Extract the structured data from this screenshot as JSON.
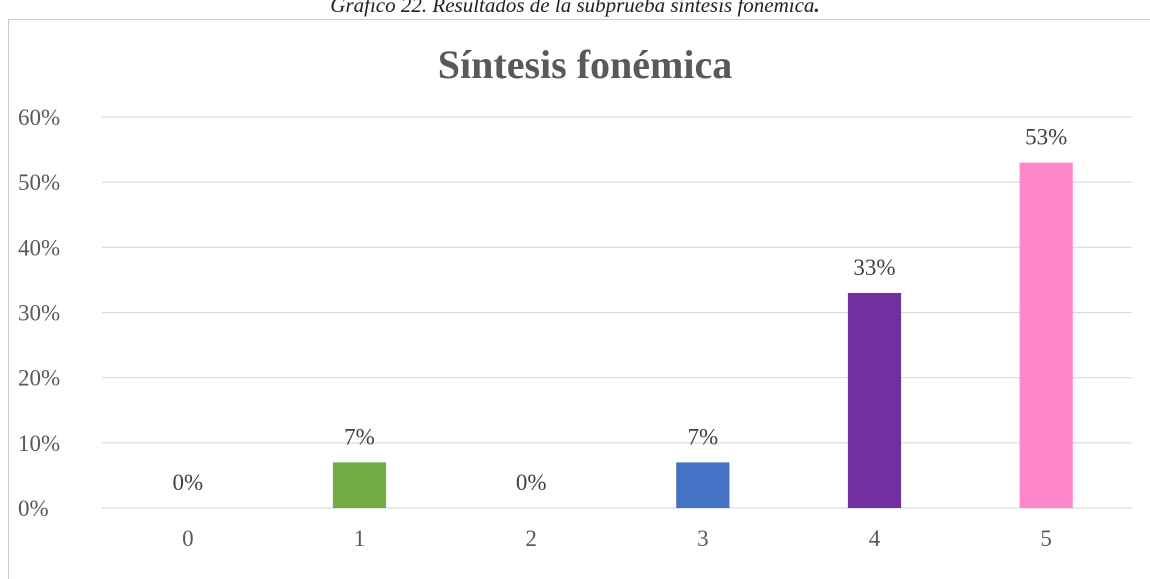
{
  "caption": {
    "text": "Gráfico 22. Resultados de la subprueba síntesis fonémica",
    "trailing": "."
  },
  "chart_data": {
    "type": "bar",
    "title": "Síntesis fonémica",
    "xlabel": "",
    "ylabel": "",
    "categories": [
      "0",
      "1",
      "2",
      "3",
      "4",
      "5"
    ],
    "values": [
      0,
      7,
      0,
      7,
      33,
      53
    ],
    "value_labels": [
      "0%",
      "7%",
      "0%",
      "7%",
      "33%",
      "53%"
    ],
    "bar_colors": [
      "#70AD47",
      "#70AD47",
      "#70AD47",
      "#4472C4",
      "#7030A0",
      "#FF88CC"
    ],
    "ylim": [
      0,
      60
    ],
    "yticks": [
      0,
      10,
      20,
      30,
      40,
      50,
      60
    ],
    "ytick_labels": [
      "0%",
      "10%",
      "20%",
      "30%",
      "40%",
      "50%",
      "60%"
    ],
    "grid": true,
    "legend": "none"
  }
}
